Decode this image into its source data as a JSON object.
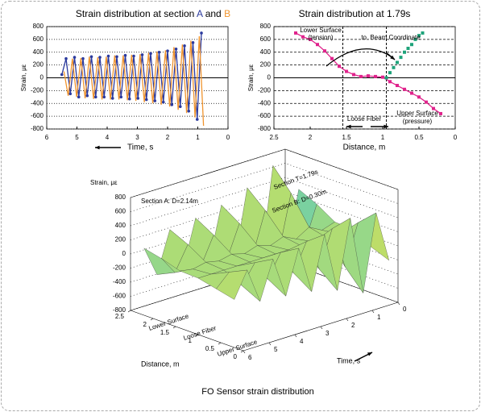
{
  "chart_data": [
    {
      "type": "line",
      "title_parts": [
        "Strain distribution at section ",
        "A",
        " and ",
        "B"
      ],
      "xlabel": "Time, s",
      "ylabel": "Strain, με",
      "xlim": [
        6,
        0
      ],
      "xticks": [
        6,
        5,
        4,
        3,
        2,
        1,
        0
      ],
      "ylim": [
        -800,
        800
      ],
      "yticks": [
        -800,
        -600,
        -400,
        -200,
        0,
        200,
        400,
        600,
        800
      ],
      "grid": true,
      "series": [
        {
          "color": "#2b3a9e",
          "marker": "circle",
          "line": true,
          "x": [
            5.5,
            5.36,
            5.22,
            5.08,
            4.94,
            4.8,
            4.66,
            4.52,
            4.38,
            4.24,
            4.1,
            3.96,
            3.82,
            3.68,
            3.54,
            3.4,
            3.26,
            3.12,
            2.98,
            2.84,
            2.7,
            2.56,
            2.42,
            2.28,
            2.14,
            2.0,
            1.86,
            1.72,
            1.58,
            1.44,
            1.3,
            1.16,
            1.02,
            0.88
          ],
          "values": [
            50,
            300,
            -250,
            320,
            -300,
            300,
            -280,
            330,
            -300,
            320,
            -300,
            340,
            -320,
            330,
            -300,
            350,
            -330,
            340,
            -320,
            360,
            -340,
            380,
            -360,
            400,
            -380,
            420,
            -420,
            450,
            -450,
            500,
            -520,
            550,
            -650,
            700
          ]
        },
        {
          "color": "#f0942e",
          "marker": "none",
          "line": true,
          "x": [
            5.43,
            5.29,
            5.15,
            5.01,
            4.87,
            4.73,
            4.59,
            4.45,
            4.31,
            4.17,
            4.03,
            3.89,
            3.75,
            3.61,
            3.47,
            3.33,
            3.19,
            3.05,
            2.91,
            2.77,
            2.63,
            2.49,
            2.35,
            2.21,
            2.07,
            1.93,
            1.79,
            1.65,
            1.51,
            1.37,
            1.23,
            1.09,
            0.95,
            0.81
          ],
          "values": [
            100,
            -280,
            300,
            -300,
            310,
            -320,
            330,
            -330,
            320,
            -340,
            330,
            -340,
            350,
            -340,
            350,
            -350,
            360,
            -360,
            370,
            -380,
            390,
            -400,
            410,
            -420,
            430,
            -450,
            480,
            -500,
            520,
            -550,
            580,
            -620,
            650,
            -750
          ]
        }
      ]
    },
    {
      "type": "line",
      "title": "Strain distribution at 1.79s",
      "xlabel": "Distance, m",
      "ylabel": "Strain, με",
      "xlim": [
        2.5,
        0
      ],
      "xticks": [
        2.5,
        2.0,
        1.5,
        1.0,
        0.5,
        0
      ],
      "ylim": [
        -800,
        800
      ],
      "yticks": [
        -800,
        -600,
        -400,
        -200,
        0,
        200,
        400,
        600,
        800
      ],
      "grid": true,
      "vlines": [
        1.55,
        0.95
      ],
      "annotations": [
        "Lower Surface",
        "(tension)",
        "to  Beam Coordinate",
        "Loose Fiber",
        "Upper Surface",
        "(pressure)"
      ],
      "series": [
        {
          "color": "#e0238c",
          "marker": "square",
          "line": true,
          "x": [
            2.2,
            2.1,
            2.0,
            1.9,
            1.8,
            1.7,
            1.6,
            1.5,
            1.4,
            1.3,
            1.2,
            1.1,
            1.0,
            0.9,
            0.8,
            0.7,
            0.6,
            0.5,
            0.4,
            0.3,
            0.2
          ],
          "values": [
            700,
            640,
            600,
            520,
            420,
            300,
            180,
            100,
            50,
            20,
            30,
            20,
            10,
            -60,
            -120,
            -180,
            -240,
            -300,
            -380,
            -480,
            -560
          ]
        },
        {
          "color": "#1ea37a",
          "marker": "square",
          "line": false,
          "x": [
            0.95,
            0.9,
            0.85,
            0.8,
            0.75,
            0.7,
            0.65,
            0.6,
            0.55,
            0.5,
            0.45
          ],
          "values": [
            0,
            80,
            160,
            240,
            320,
            400,
            460,
            520,
            600,
            660,
            700
          ]
        }
      ]
    },
    {
      "type": "surface3d",
      "title": "FO Sensor strain distribution",
      "zlabel": "Strain, με",
      "dlabel": "Distance, m",
      "tlabel": "Time, s",
      "zlim": [
        -800,
        800
      ],
      "zticks": [
        -800,
        -600,
        -400,
        -200,
        0,
        200,
        400,
        600,
        800
      ],
      "dlim": [
        0,
        2.5
      ],
      "dticks": [
        0,
        0.5,
        1,
        1.5,
        2,
        2.5
      ],
      "tlim": [
        0,
        6
      ],
      "tticks": [
        0,
        1,
        2,
        3,
        4,
        5,
        6
      ],
      "annotations": [
        "Section A: D=2.14m",
        "Section B: D=0.30m",
        "Section T=1.79s",
        "Lower Surface",
        "Loose Fiber",
        "Upper Surface"
      ],
      "distance": [
        2.2,
        1.8,
        1.4,
        1.0,
        0.6,
        0.2
      ],
      "time": [
        0,
        0.5,
        1,
        1.5,
        2,
        2.5,
        3,
        3.5,
        4,
        4.5,
        5,
        5.5,
        6
      ],
      "z": [
        [
          300,
          180,
          20,
          0,
          -150,
          -250
        ],
        [
          -600,
          -350,
          -40,
          0,
          250,
          480
        ],
        [
          750,
          450,
          60,
          0,
          -320,
          -600
        ],
        [
          -650,
          -380,
          -50,
          0,
          280,
          520
        ],
        [
          550,
          320,
          40,
          0,
          -240,
          -450
        ],
        [
          -480,
          -280,
          -30,
          0,
          210,
          400
        ],
        [
          420,
          250,
          30,
          0,
          -180,
          -350
        ],
        [
          -380,
          -220,
          -30,
          0,
          170,
          320
        ],
        [
          350,
          200,
          20,
          0,
          -150,
          -300
        ],
        [
          -330,
          -190,
          -20,
          0,
          140,
          280
        ],
        [
          300,
          180,
          20,
          0,
          -130,
          -260
        ],
        [
          -280,
          -160,
          -20,
          0,
          120,
          240
        ],
        [
          150,
          90,
          10,
          0,
          -60,
          -120
        ]
      ]
    }
  ]
}
